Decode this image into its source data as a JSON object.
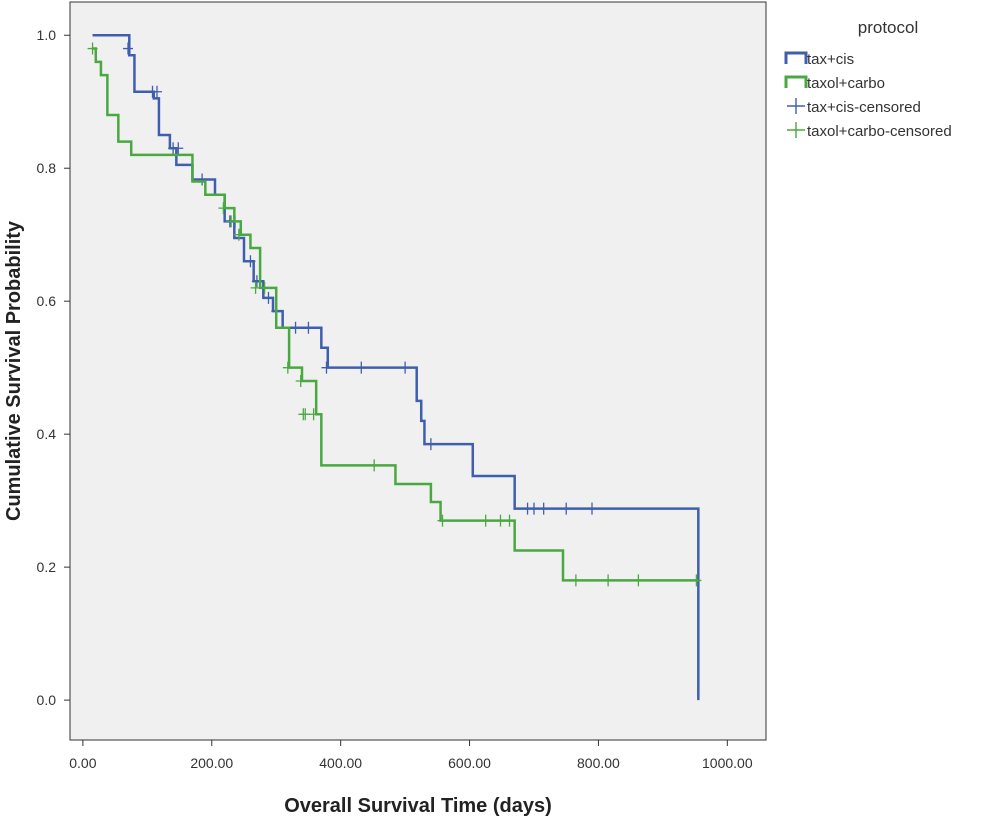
{
  "chart_data": {
    "type": "line",
    "subtype": "kaplan-meier-step",
    "xlabel": "Overall Survival Time (days)",
    "ylabel": "Cumulative Survival Probability",
    "xlim": [
      -20,
      1060
    ],
    "ylim": [
      -0.06,
      1.05
    ],
    "xticks": [
      0,
      200,
      400,
      600,
      800,
      1000
    ],
    "xtick_labels": [
      "0.00",
      "200.00",
      "400.00",
      "600.00",
      "800.00",
      "1000.00"
    ],
    "yticks": [
      0.0,
      0.2,
      0.4,
      0.6,
      0.8,
      1.0
    ],
    "ytick_labels": [
      "0.0",
      "0.2",
      "0.4",
      "0.6",
      "0.8",
      "1.0"
    ],
    "grid": false,
    "legend_title": "protocol",
    "legend_placement": "top-right outside plot",
    "legend_entries": [
      {
        "label": "tax+cis",
        "kind": "line",
        "color": "#3f5fae"
      },
      {
        "label": "taxol+carbo",
        "kind": "line",
        "color": "#4aa841"
      },
      {
        "label": "tax+cis-censored",
        "kind": "marker",
        "color": "#3f5fae"
      },
      {
        "label": "taxol+carbo-censored",
        "kind": "marker",
        "color": "#4aa841"
      }
    ],
    "series": [
      {
        "name": "tax+cis",
        "color": "#3f5fae",
        "step_x": [
          15,
          72,
          80,
          110,
          118,
          135,
          145,
          170,
          205,
          220,
          235,
          250,
          265,
          280,
          295,
          310,
          370,
          380,
          518,
          525,
          530,
          605,
          670,
          955
        ],
        "step_y": [
          1.0,
          0.97,
          0.915,
          0.905,
          0.85,
          0.83,
          0.805,
          0.783,
          0.76,
          0.72,
          0.695,
          0.66,
          0.63,
          0.605,
          0.585,
          0.56,
          0.53,
          0.5,
          0.45,
          0.42,
          0.385,
          0.337,
          0.288,
          0.0
        ],
        "censored_x": [
          70,
          108,
          115,
          140,
          148,
          185,
          228,
          236,
          260,
          270,
          288,
          300,
          330,
          350,
          378,
          432,
          500,
          540,
          690,
          700,
          715,
          750,
          790
        ],
        "censored_y": [
          0.98,
          0.915,
          0.915,
          0.83,
          0.83,
          0.783,
          0.72,
          0.72,
          0.66,
          0.63,
          0.605,
          0.585,
          0.56,
          0.56,
          0.5,
          0.5,
          0.5,
          0.385,
          0.288,
          0.288,
          0.288,
          0.288,
          0.288
        ]
      },
      {
        "name": "taxol+carbo",
        "color": "#4aa841",
        "step_x": [
          15,
          20,
          28,
          38,
          55,
          75,
          135,
          170,
          190,
          220,
          235,
          245,
          260,
          275,
          300,
          320,
          340,
          362,
          370,
          485,
          540,
          555,
          670,
          745,
          955
        ],
        "step_y": [
          0.98,
          0.96,
          0.94,
          0.88,
          0.84,
          0.82,
          0.82,
          0.78,
          0.76,
          0.74,
          0.72,
          0.7,
          0.68,
          0.62,
          0.56,
          0.5,
          0.48,
          0.43,
          0.353,
          0.325,
          0.298,
          0.27,
          0.225,
          0.18,
          0.18
        ],
        "censored_x": [
          15,
          218,
          230,
          242,
          268,
          282,
          318,
          338,
          342,
          345,
          358,
          452,
          558,
          625,
          648,
          662,
          765,
          815,
          862,
          952
        ],
        "censored_y": [
          0.98,
          0.74,
          0.72,
          0.7,
          0.62,
          0.62,
          0.5,
          0.48,
          0.43,
          0.43,
          0.43,
          0.353,
          0.27,
          0.27,
          0.27,
          0.27,
          0.18,
          0.18,
          0.18,
          0.18
        ]
      }
    ]
  }
}
